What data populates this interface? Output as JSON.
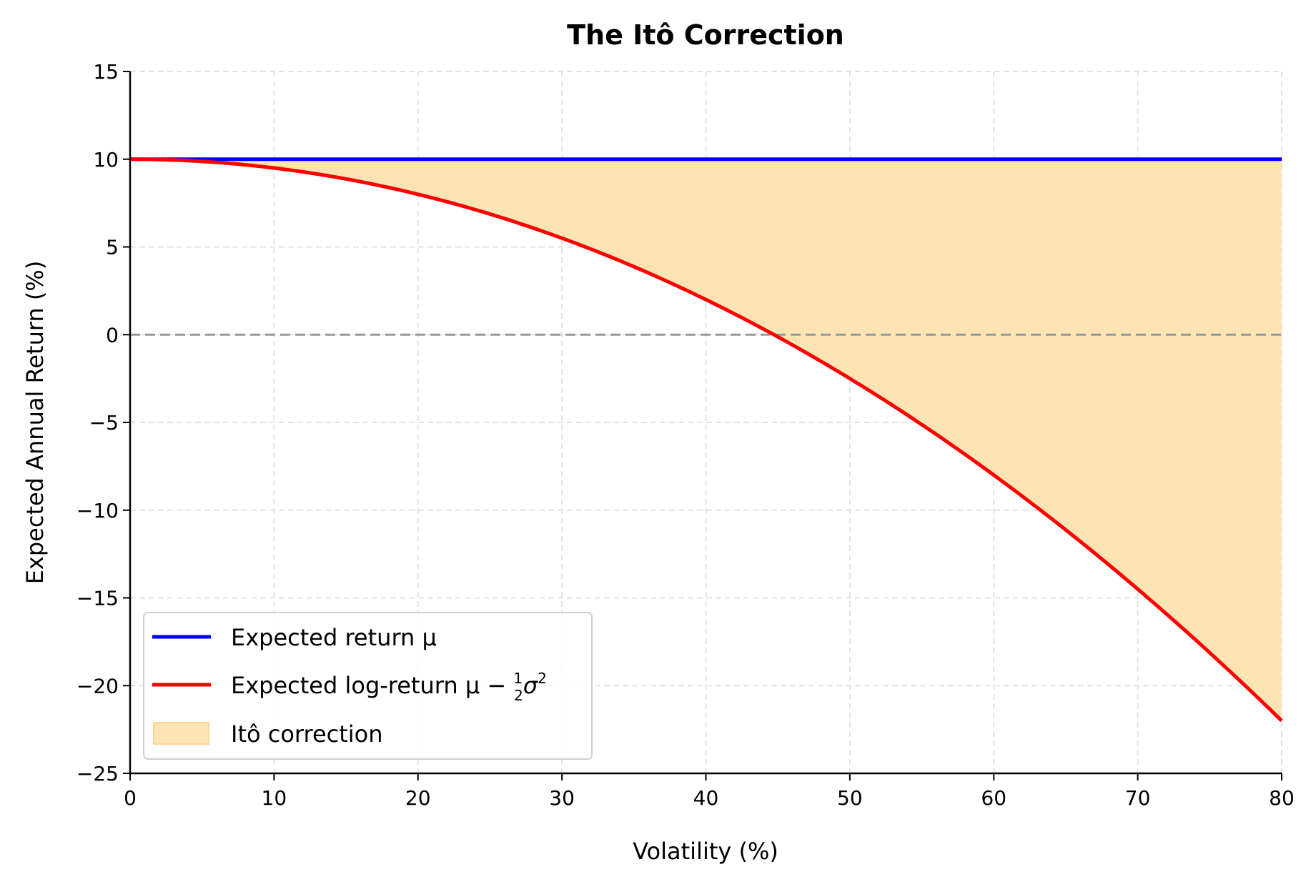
{
  "chart_data": {
    "type": "line",
    "title": "The Itô Correction",
    "xlabel": "Volatility (%)",
    "ylabel": "Expected Annual Return (%)",
    "xlim": [
      0,
      80
    ],
    "ylim": [
      -25,
      15
    ],
    "xticks": [
      0,
      10,
      20,
      30,
      40,
      50,
      60,
      70,
      80
    ],
    "yticks": [
      15,
      10,
      5,
      0,
      -5,
      -10,
      -15,
      -20,
      -25
    ],
    "grid": true,
    "legend_position": "lower-left",
    "reference_line": {
      "y": 0,
      "style": "dashed",
      "color": "#999999"
    },
    "x": [
      0,
      5,
      10,
      15,
      20,
      25,
      30,
      35,
      40,
      45,
      50,
      55,
      60,
      65,
      70,
      75,
      80
    ],
    "series": [
      {
        "name": "Expected return μ",
        "color": "#0000ff",
        "values": [
          10,
          10,
          10,
          10,
          10,
          10,
          10,
          10,
          10,
          10,
          10,
          10,
          10,
          10,
          10,
          10,
          10
        ]
      },
      {
        "name": "Expected log-return μ − ½σ²",
        "color": "#ff0000",
        "values": [
          10,
          9.875,
          9.5,
          8.875,
          8,
          6.875,
          5.5,
          3.875,
          2,
          -0.125,
          -2.5,
          -5.125,
          -8,
          -11.125,
          -14.5,
          -18.125,
          -22
        ]
      }
    ],
    "fill": {
      "name": "Itô correction",
      "color": "#ffe4b3",
      "between": [
        "Expected return μ",
        "Expected log-return μ − ½σ²"
      ]
    },
    "legend": {
      "items": [
        {
          "text": "Expected return μ"
        },
        {
          "text": "Expected log-return μ − ½σ²",
          "main": "Expected log-return μ − ",
          "frac_num": "1",
          "frac_den": "2",
          "sigma": "σ",
          "exp": "2"
        },
        {
          "text": "Itô correction"
        }
      ]
    }
  }
}
